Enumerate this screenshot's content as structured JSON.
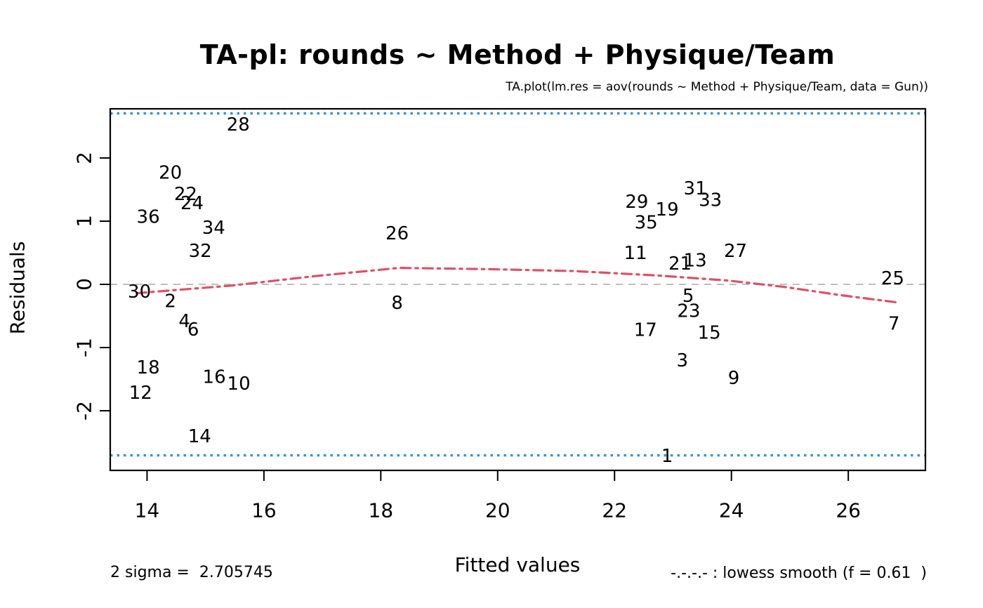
{
  "header": {
    "title": "TA-pl: rounds ~ Method + Physique/Team",
    "subtitle": "TA.plot(lm.res = aov(rounds ~ Method + Physique/Team, data = Gun))"
  },
  "footer": {
    "sigma_note": "2 sigma =  2.705745",
    "xlabel": "Fitted values",
    "lowess_note": "-.-.-.- : lowess smooth (f = 0.61  )"
  },
  "colors": {
    "sigma_line": "#3294d6",
    "lowess_line": "#dc5168",
    "zero_line": "#bfbfbf",
    "frame": "#000000",
    "text": "#000000"
  },
  "chart_data": {
    "type": "scatter",
    "title": "TA-pl: rounds ~ Method + Physique/Team",
    "subtitle": "TA.plot(lm.res = aov(rounds ~ Method + Physique/Team, data = Gun))",
    "xlabel": "Fitted values",
    "ylabel": "Residuals",
    "xlim": [
      13.37,
      27.32
    ],
    "ylim": [
      -2.944,
      2.778
    ],
    "xticks": [
      14,
      16,
      18,
      20,
      22,
      24,
      26
    ],
    "yticks": [
      -2,
      -1,
      0,
      1,
      2
    ],
    "grid": false,
    "two_sigma": 2.705745,
    "lowess_f": 0.61,
    "points": [
      {
        "label": "1",
        "fitted": 22.9,
        "residual": -2.72
      },
      {
        "label": "2",
        "fitted": 14.4,
        "residual": -0.27
      },
      {
        "label": "3",
        "fitted": 23.16,
        "residual": -1.21
      },
      {
        "label": "4",
        "fitted": 14.64,
        "residual": -0.59
      },
      {
        "label": "5",
        "fitted": 23.26,
        "residual": -0.19
      },
      {
        "label": "6",
        "fitted": 14.79,
        "residual": -0.72
      },
      {
        "label": "7",
        "fitted": 26.78,
        "residual": -0.63
      },
      {
        "label": "8",
        "fitted": 18.28,
        "residual": -0.3
      },
      {
        "label": "9",
        "fitted": 24.04,
        "residual": -1.49
      },
      {
        "label": "10",
        "fitted": 15.57,
        "residual": -1.58
      },
      {
        "label": "11",
        "fitted": 22.36,
        "residual": 0.49
      },
      {
        "label": "12",
        "fitted": 13.89,
        "residual": -1.72
      },
      {
        "label": "13",
        "fitted": 23.38,
        "residual": 0.37
      },
      {
        "label": "14",
        "fitted": 14.9,
        "residual": -2.41
      },
      {
        "label": "15",
        "fitted": 23.62,
        "residual": -0.77
      },
      {
        "label": "16",
        "fitted": 15.15,
        "residual": -1.47
      },
      {
        "label": "17",
        "fitted": 22.53,
        "residual": -0.73
      },
      {
        "label": "18",
        "fitted": 14.02,
        "residual": -1.32
      },
      {
        "label": "19",
        "fitted": 22.9,
        "residual": 1.18
      },
      {
        "label": "20",
        "fitted": 14.4,
        "residual": 1.76
      },
      {
        "label": "21",
        "fitted": 23.12,
        "residual": 0.32
      },
      {
        "label": "22",
        "fitted": 14.66,
        "residual": 1.42
      },
      {
        "label": "23",
        "fitted": 23.27,
        "residual": -0.43
      },
      {
        "label": "24",
        "fitted": 14.77,
        "residual": 1.28
      },
      {
        "label": "25",
        "fitted": 26.76,
        "residual": 0.09
      },
      {
        "label": "26",
        "fitted": 18.28,
        "residual": 0.8
      },
      {
        "label": "27",
        "fitted": 24.07,
        "residual": 0.52
      },
      {
        "label": "28",
        "fitted": 15.56,
        "residual": 2.52
      },
      {
        "label": "29",
        "fitted": 22.38,
        "residual": 1.3
      },
      {
        "label": "30",
        "fitted": 13.87,
        "residual": -0.12
      },
      {
        "label": "31",
        "fitted": 23.38,
        "residual": 1.51
      },
      {
        "label": "32",
        "fitted": 14.91,
        "residual": 0.52
      },
      {
        "label": "33",
        "fitted": 23.64,
        "residual": 1.33
      },
      {
        "label": "34",
        "fitted": 15.14,
        "residual": 0.89
      },
      {
        "label": "35",
        "fitted": 22.54,
        "residual": 0.97
      },
      {
        "label": "36",
        "fitted": 14.02,
        "residual": 1.06
      }
    ],
    "lowess_curve": [
      [
        13.82,
        -0.14
      ],
      [
        14.36,
        -0.1
      ],
      [
        15.44,
        -0.02
      ],
      [
        16.87,
        0.13
      ],
      [
        18.31,
        0.26
      ],
      [
        19.87,
        0.24
      ],
      [
        21.31,
        0.21
      ],
      [
        22.74,
        0.14
      ],
      [
        23.94,
        0.06
      ],
      [
        24.9,
        -0.04
      ],
      [
        25.86,
        -0.17
      ],
      [
        26.87,
        -0.29
      ]
    ],
    "legend_position": "bottom-right"
  }
}
